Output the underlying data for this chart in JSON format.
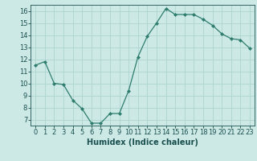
{
  "x": [
    0,
    1,
    2,
    3,
    4,
    5,
    6,
    7,
    8,
    9,
    10,
    11,
    12,
    13,
    14,
    15,
    16,
    17,
    18,
    19,
    20,
    21,
    22,
    23
  ],
  "y": [
    11.5,
    11.8,
    10.0,
    9.9,
    8.6,
    7.9,
    6.7,
    6.7,
    7.5,
    7.5,
    9.4,
    12.2,
    13.9,
    15.0,
    16.2,
    15.7,
    15.7,
    15.7,
    15.3,
    14.8,
    14.1,
    13.7,
    13.6,
    12.9
  ],
  "xlabel": "Humidex (Indice chaleur)",
  "ylim": [
    6.5,
    16.5
  ],
  "xlim": [
    -0.5,
    23.5
  ],
  "yticks": [
    7,
    8,
    9,
    10,
    11,
    12,
    13,
    14,
    15,
    16
  ],
  "xticks": [
    0,
    1,
    2,
    3,
    4,
    5,
    6,
    7,
    8,
    9,
    10,
    11,
    12,
    13,
    14,
    15,
    16,
    17,
    18,
    19,
    20,
    21,
    22,
    23
  ],
  "xtick_labels": [
    "0",
    "1",
    "2",
    "3",
    "4",
    "5",
    "6",
    "7",
    "8",
    "9",
    "10",
    "11",
    "12",
    "13",
    "14",
    "15",
    "16",
    "17",
    "18",
    "19",
    "20",
    "21",
    "22",
    "23"
  ],
  "line_color": "#2e7d6e",
  "marker": "D",
  "marker_size": 2,
  "bg_color": "#cce9e5",
  "grid_color": "#add4cf",
  "axes_color": "#1a5050",
  "xlabel_fontsize": 7,
  "tick_fontsize": 6
}
